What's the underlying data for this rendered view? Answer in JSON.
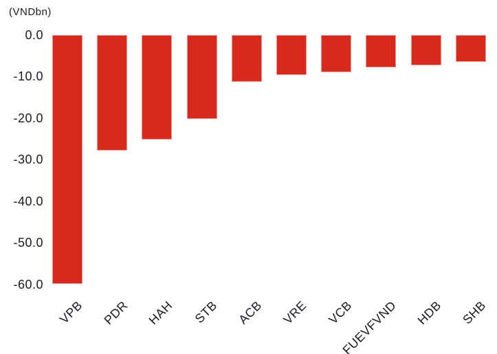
{
  "chart_data": {
    "type": "bar",
    "title": "",
    "unit_label": "(VNDbn)",
    "categories": [
      "VPB",
      "PDR",
      "HAH",
      "STB",
      "ACB",
      "VRE",
      "VCB",
      "FUEVFVND",
      "HDB",
      "SHB"
    ],
    "values": [
      -59.8,
      -27.8,
      -25.2,
      -20.1,
      -11.3,
      -9.6,
      -9.0,
      -7.8,
      -7.2,
      -6.4
    ],
    "xlabel": "",
    "ylabel": "",
    "ylim": [
      -60,
      0
    ],
    "yticks": [
      0,
      -10,
      -20,
      -30,
      -40,
      -50,
      -60
    ],
    "ytick_labels": [
      "0.0",
      "-10.0",
      "-20.0",
      "-30.0",
      "-40.0",
      "-50.0",
      "-60.0"
    ],
    "xtick_rotation_deg": 45,
    "grid": false,
    "legend": false,
    "bar_color": "#d7291e",
    "text_color": "#1a1a24",
    "background_color": "#ffffff"
  }
}
